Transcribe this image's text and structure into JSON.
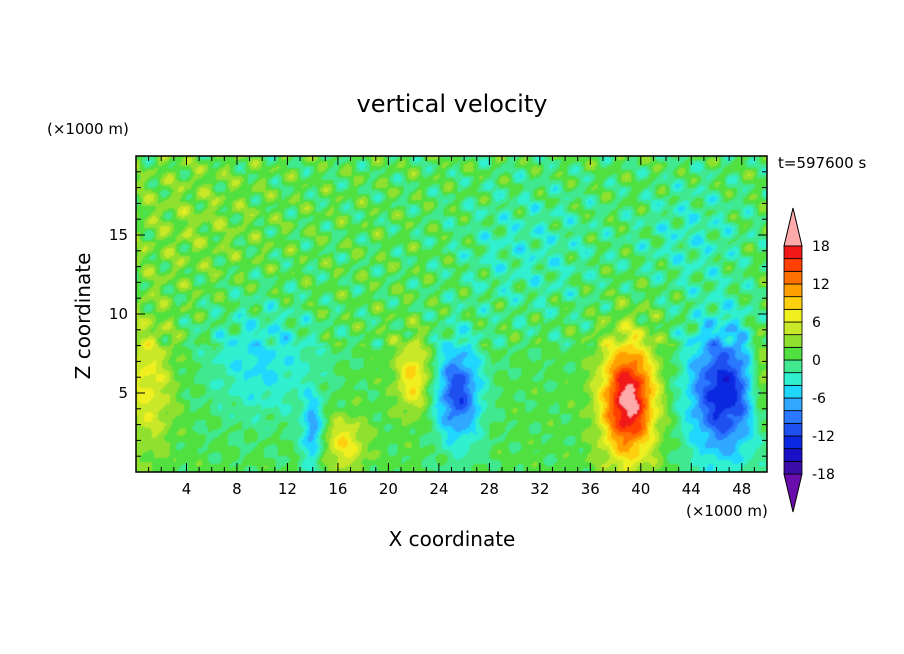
{
  "chart_data": {
    "type": "heatmap",
    "title": "vertical velocity",
    "xlabel": "X coordinate",
    "ylabel": "Z coordinate",
    "x_unit": "(×1000 m)",
    "y_unit": "(×1000 m)",
    "time_label": "t=597600 s",
    "xlim": [
      0,
      50
    ],
    "ylim": [
      0,
      20
    ],
    "x_ticks": [
      "4",
      "8",
      "12",
      "16",
      "20",
      "24",
      "28",
      "32",
      "36",
      "40",
      "44",
      "48"
    ],
    "y_ticks": [
      "5",
      "10",
      "15"
    ],
    "colorbar": {
      "levels": [
        -20,
        -18,
        -16,
        -14,
        -12,
        -10,
        -8,
        -6,
        -4,
        -2,
        0,
        2,
        4,
        6,
        8,
        10,
        12,
        14,
        16,
        18,
        20
      ],
      "tick_labels": [
        "18",
        "12",
        "6",
        "0",
        "-6",
        "-12",
        "-18"
      ],
      "colors": [
        "#6a0dad",
        "#3b0ca8",
        "#1a10c8",
        "#0a28e0",
        "#1e50f0",
        "#2a78ff",
        "#30a8ff",
        "#20d8ff",
        "#30f0d0",
        "#40e890",
        "#50e040",
        "#90e030",
        "#c8e828",
        "#f0f020",
        "#ffd010",
        "#ffa000",
        "#ff7000",
        "#ff4000",
        "#f01818",
        "#ffaaaa"
      ]
    },
    "features": [
      {
        "x": 1.0,
        "z": 5.5,
        "w": 6,
        "sx": 1.4,
        "sz": 3.0
      },
      {
        "x": 39.0,
        "z": 4.5,
        "w": 19,
        "sx": 1.5,
        "sz": 2.6
      },
      {
        "x": 22.0,
        "z": 6.0,
        "w": 8,
        "sx": 1.0,
        "sz": 1.6
      },
      {
        "x": 16.5,
        "z": 1.8,
        "w": 7,
        "sx": 1.2,
        "sz": 1.2
      },
      {
        "x": 25.5,
        "z": 5.0,
        "w": -12,
        "sx": 1.3,
        "sz": 2.2
      },
      {
        "x": 46.5,
        "z": 5.0,
        "w": -14,
        "sx": 2.0,
        "sz": 3.0
      },
      {
        "x": 14.0,
        "z": 2.5,
        "w": -8,
        "sx": 0.6,
        "sz": 1.6
      },
      {
        "x": 10.0,
        "z": 7.0,
        "w": -5,
        "sx": 3.0,
        "sz": 2.5
      },
      {
        "x": 31.0,
        "z": 14.0,
        "w": -3,
        "sx": 4.0,
        "sz": 3.0
      },
      {
        "x": 4.0,
        "z": 16.0,
        "w": 2,
        "sx": 4.0,
        "sz": 3.0
      },
      {
        "x": 44.0,
        "z": 15.0,
        "w": -3,
        "sx": 3.0,
        "sz": 2.5
      },
      {
        "x": 49.5,
        "z": 6.0,
        "w": 6,
        "sx": 0.6,
        "sz": 2.0
      }
    ]
  }
}
